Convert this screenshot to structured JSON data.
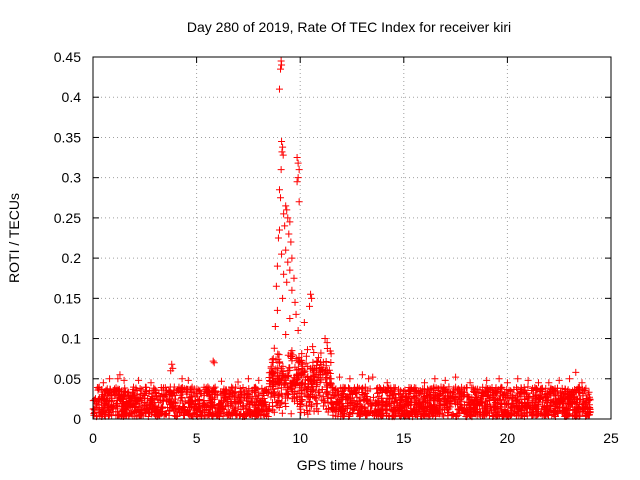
{
  "chart_data": {
    "type": "scatter",
    "title": "Day 280 of 2019, Rate Of TEC Index for receiver kiri",
    "xlabel": "GPS time / hours",
    "ylabel": "ROTI / TECUs",
    "xlim": [
      0,
      25
    ],
    "ylim": [
      0,
      0.45
    ],
    "xticks": [
      0,
      5,
      10,
      15,
      20,
      25
    ],
    "yticks": [
      0,
      0.05,
      0.1,
      0.15,
      0.2,
      0.25,
      0.3,
      0.35,
      0.4,
      0.45
    ],
    "grid": true,
    "marker": "+",
    "color": "#ff0000",
    "series": [
      {
        "name": "ROTI",
        "points": [
          [
            9.0,
            0.41
          ],
          [
            9.05,
            0.435
          ],
          [
            9.08,
            0.445
          ],
          [
            9.1,
            0.44
          ],
          [
            9.1,
            0.345
          ],
          [
            9.15,
            0.338
          ],
          [
            9.12,
            0.332
          ],
          [
            9.18,
            0.328
          ],
          [
            9.08,
            0.31
          ],
          [
            9.85,
            0.325
          ],
          [
            9.9,
            0.318
          ],
          [
            9.95,
            0.31
          ],
          [
            9.9,
            0.3
          ],
          [
            9.85,
            0.295
          ],
          [
            9.0,
            0.285
          ],
          [
            9.05,
            0.275
          ],
          [
            9.3,
            0.265
          ],
          [
            9.95,
            0.27
          ],
          [
            9.35,
            0.26
          ],
          [
            9.2,
            0.255
          ],
          [
            9.4,
            0.25
          ],
          [
            9.5,
            0.245
          ],
          [
            9.25,
            0.24
          ],
          [
            9.0,
            0.235
          ],
          [
            9.45,
            0.23
          ],
          [
            8.95,
            0.225
          ],
          [
            9.55,
            0.22
          ],
          [
            9.3,
            0.21
          ],
          [
            9.1,
            0.205
          ],
          [
            9.6,
            0.2
          ],
          [
            9.4,
            0.195
          ],
          [
            8.9,
            0.19
          ],
          [
            9.5,
            0.185
          ],
          [
            9.2,
            0.18
          ],
          [
            9.7,
            0.175
          ],
          [
            9.35,
            0.17
          ],
          [
            8.85,
            0.165
          ],
          [
            9.6,
            0.16
          ],
          [
            10.5,
            0.155
          ],
          [
            10.55,
            0.15
          ],
          [
            9.15,
            0.15
          ],
          [
            9.75,
            0.145
          ],
          [
            10.45,
            0.14
          ],
          [
            8.9,
            0.135
          ],
          [
            9.8,
            0.13
          ],
          [
            9.5,
            0.125
          ],
          [
            10.2,
            0.12
          ],
          [
            8.8,
            0.115
          ],
          [
            9.9,
            0.11
          ],
          [
            9.3,
            0.105
          ],
          [
            11.2,
            0.1
          ],
          [
            11.3,
            0.095
          ],
          [
            10.6,
            0.09
          ],
          [
            8.75,
            0.088
          ],
          [
            9.6,
            0.085
          ],
          [
            11.0,
            0.082
          ],
          [
            10.3,
            0.078
          ],
          [
            8.7,
            0.075
          ],
          [
            10.8,
            0.072
          ],
          [
            9.0,
            0.07
          ],
          [
            10.1,
            0.068
          ],
          [
            8.6,
            0.065
          ],
          [
            11.1,
            0.062
          ],
          [
            9.4,
            0.06
          ],
          [
            10.9,
            0.058
          ],
          [
            8.65,
            0.055
          ],
          [
            3.8,
            0.068
          ],
          [
            3.85,
            0.063
          ],
          [
            3.75,
            0.06
          ],
          [
            5.8,
            0.072
          ],
          [
            5.85,
            0.07
          ],
          [
            1.3,
            0.055
          ],
          [
            1.2,
            0.05
          ],
          [
            1.5,
            0.048
          ],
          [
            0.8,
            0.05
          ],
          [
            0.5,
            0.045
          ],
          [
            2.2,
            0.048
          ],
          [
            2.8,
            0.045
          ],
          [
            4.3,
            0.05
          ],
          [
            4.6,
            0.048
          ],
          [
            6.2,
            0.047
          ],
          [
            7.0,
            0.046
          ],
          [
            7.5,
            0.05
          ],
          [
            8.0,
            0.048
          ],
          [
            11.9,
            0.052
          ],
          [
            12.4,
            0.05
          ],
          [
            13.0,
            0.055
          ],
          [
            13.5,
            0.052
          ],
          [
            13.3,
            0.05
          ],
          [
            14.2,
            0.045
          ],
          [
            16.0,
            0.045
          ],
          [
            16.5,
            0.05
          ],
          [
            17.0,
            0.048
          ],
          [
            17.5,
            0.052
          ],
          [
            18.2,
            0.045
          ],
          [
            19.0,
            0.048
          ],
          [
            19.6,
            0.05
          ],
          [
            20.0,
            0.045
          ],
          [
            20.5,
            0.05
          ],
          [
            21.0,
            0.048
          ],
          [
            21.5,
            0.045
          ],
          [
            22.0,
            0.045
          ],
          [
            22.5,
            0.048
          ],
          [
            23.0,
            0.05
          ],
          [
            23.3,
            0.058
          ],
          [
            23.6,
            0.045
          ]
        ],
        "baseline_band": {
          "x_range": [
            0,
            24
          ],
          "y_range": [
            0.003,
            0.04
          ]
        }
      }
    ]
  }
}
